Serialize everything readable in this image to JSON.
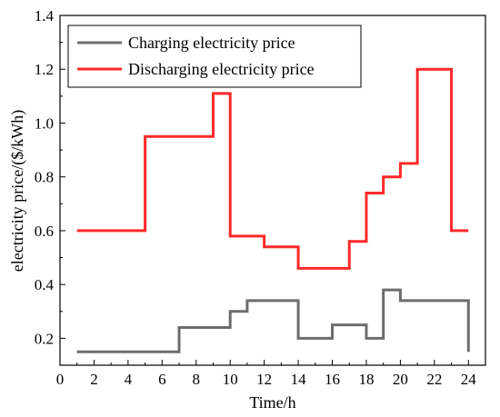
{
  "chart_data": {
    "type": "line",
    "step": true,
    "xlabel": "Time/h",
    "ylabel": "electricity price/($/kWh)",
    "xlim": [
      0,
      25
    ],
    "ylim": [
      0.1,
      1.4
    ],
    "xticks": [
      0,
      2,
      4,
      6,
      8,
      10,
      12,
      14,
      16,
      18,
      20,
      22,
      24
    ],
    "yticks": [
      0.2,
      0.4,
      0.6,
      0.8,
      1.0,
      1.2,
      1.4
    ],
    "ytick_labels": [
      "0.2",
      "0.4",
      "0.6",
      "0.8",
      "1.0",
      "1.2",
      "1.4"
    ],
    "grid": false,
    "legend_position": "top-left",
    "series": [
      {
        "name": "Charging electricity price",
        "color": "#6d6d6d",
        "x": [
          1,
          7,
          10,
          11,
          14,
          16,
          18,
          19,
          20,
          24
        ],
        "values": [
          0.15,
          0.24,
          0.3,
          0.34,
          0.2,
          0.25,
          0.2,
          0.38,
          0.34,
          0.15
        ]
      },
      {
        "name": "Discharging electricity price",
        "color": "#ff2a2a",
        "x": [
          1,
          5,
          9,
          10,
          12,
          14,
          17,
          18,
          19,
          20,
          21,
          23,
          24
        ],
        "values": [
          0.6,
          0.95,
          1.11,
          0.58,
          0.54,
          0.46,
          0.56,
          0.74,
          0.8,
          0.85,
          1.2,
          0.6,
          0.6
        ]
      }
    ]
  }
}
